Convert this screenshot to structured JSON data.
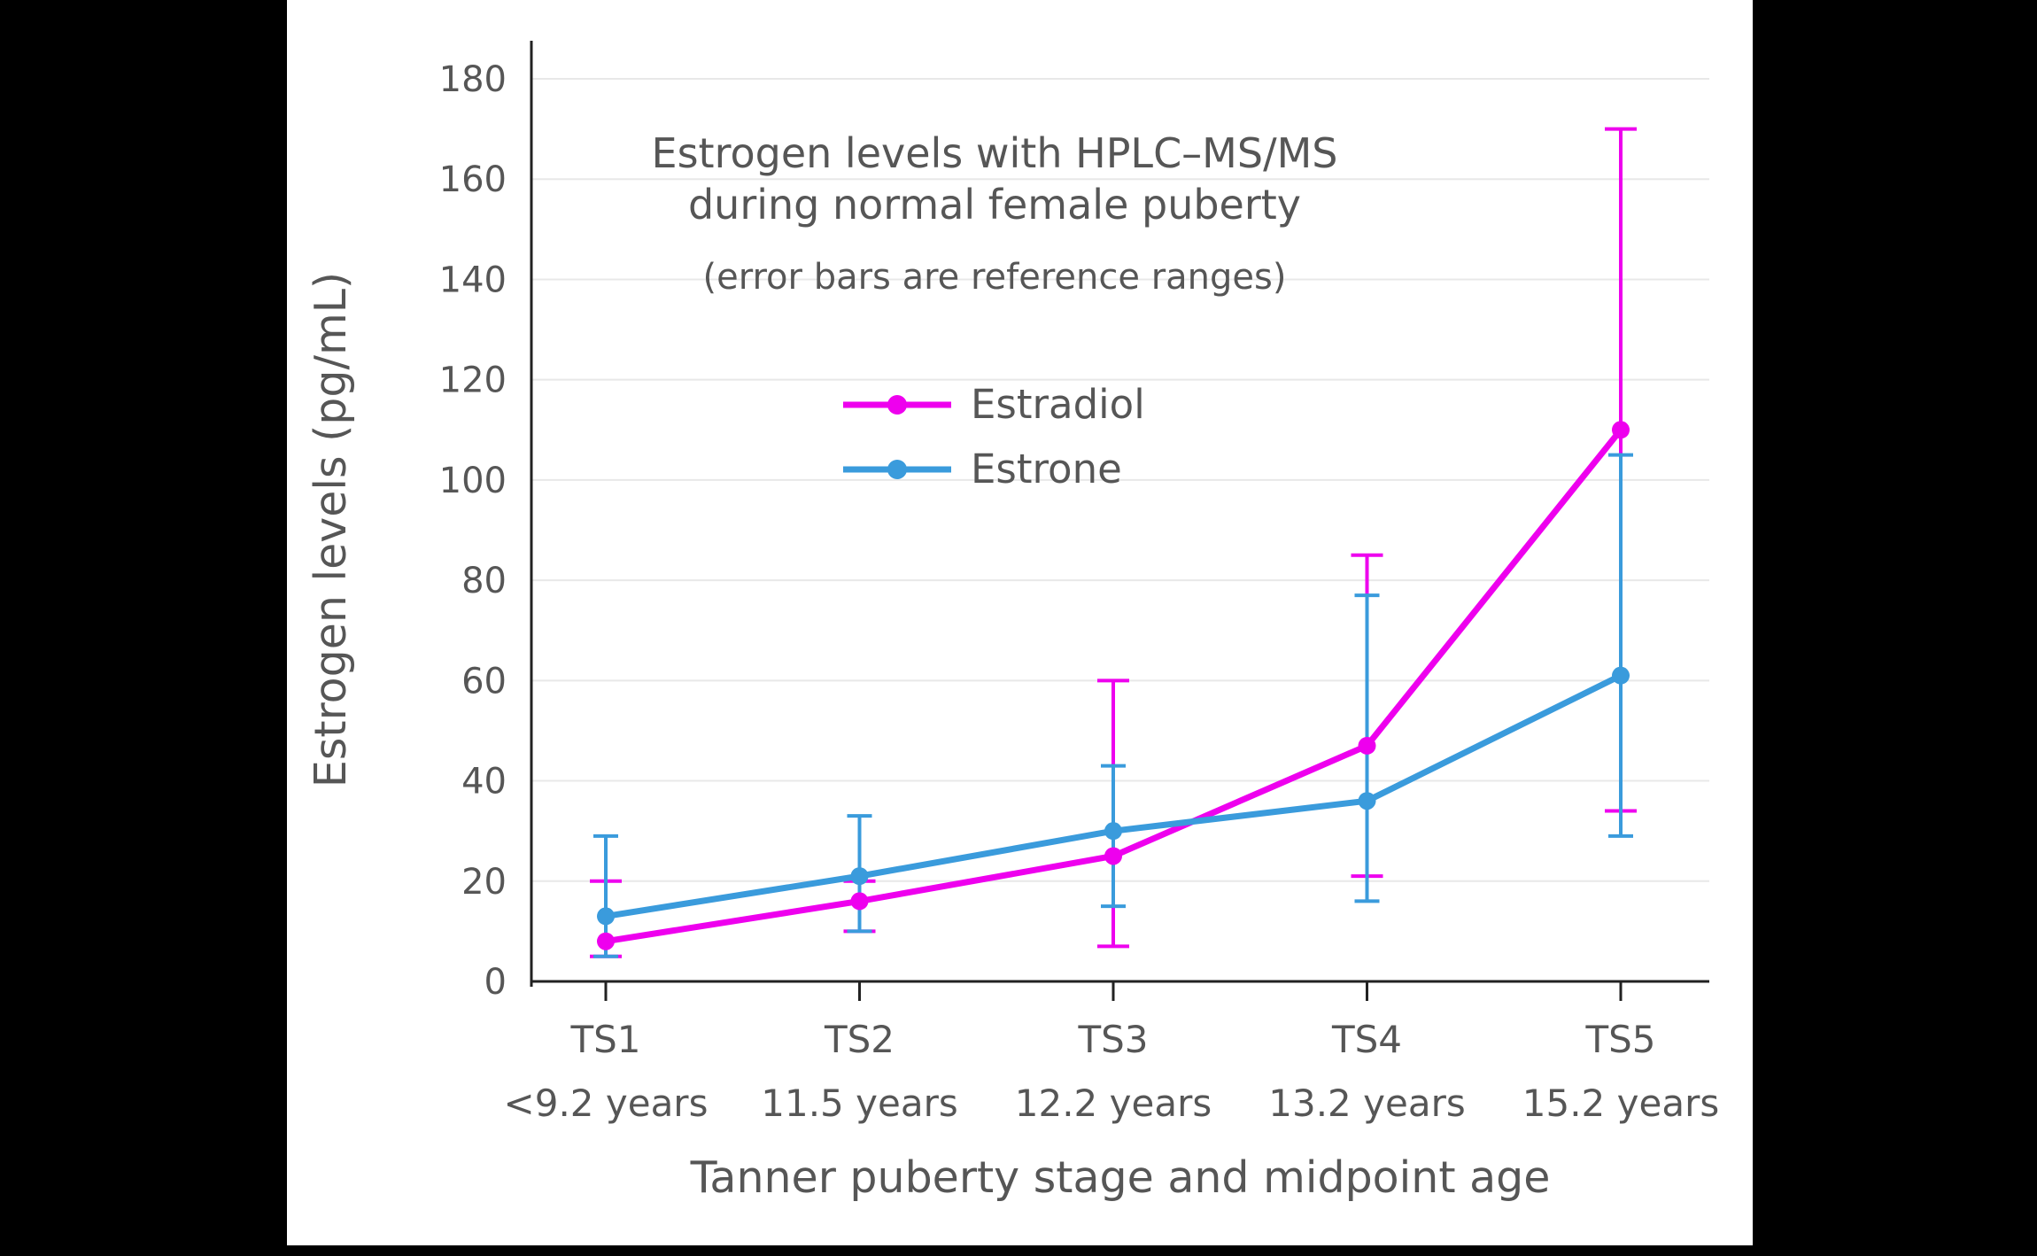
{
  "page": {
    "background": "#000000",
    "canvas_background": "#ffffff"
  },
  "chart_data": {
    "type": "line",
    "title_lines": [
      "Estrogen levels with HPLC–MS/MS",
      "during normal female puberty"
    ],
    "subtitle": "(error bars are reference ranges)",
    "xlabel": "Tanner puberty stage and midpoint age",
    "ylabel": "Estrogen levels (pg/mL)",
    "categories": [
      "TS1",
      "TS2",
      "TS3",
      "TS4",
      "TS5"
    ],
    "category_sublabels": [
      "<9.2 years",
      "11.5 years",
      "12.2 years",
      "13.2 years",
      "15.2 years"
    ],
    "ylim": [
      0,
      180
    ],
    "ytick_step": 20,
    "grid": true,
    "legend_position": "inside-upper-left",
    "series": [
      {
        "name": "Estradiol",
        "color": "#EE00EE",
        "values": [
          8,
          16,
          25,
          47,
          110
        ],
        "error_low": [
          5,
          10,
          7,
          21,
          34
        ],
        "error_high": [
          20,
          20,
          60,
          85,
          170
        ]
      },
      {
        "name": "Estrone",
        "color": "#3A9BDC",
        "values": [
          13,
          21,
          30,
          36,
          61
        ],
        "error_low": [
          5,
          10,
          15,
          16,
          29
        ],
        "error_high": [
          29,
          33,
          43,
          77,
          105
        ]
      }
    ],
    "text_color": "#565656",
    "grid_color": "#e8e8e8",
    "axis_color": "#222222"
  }
}
